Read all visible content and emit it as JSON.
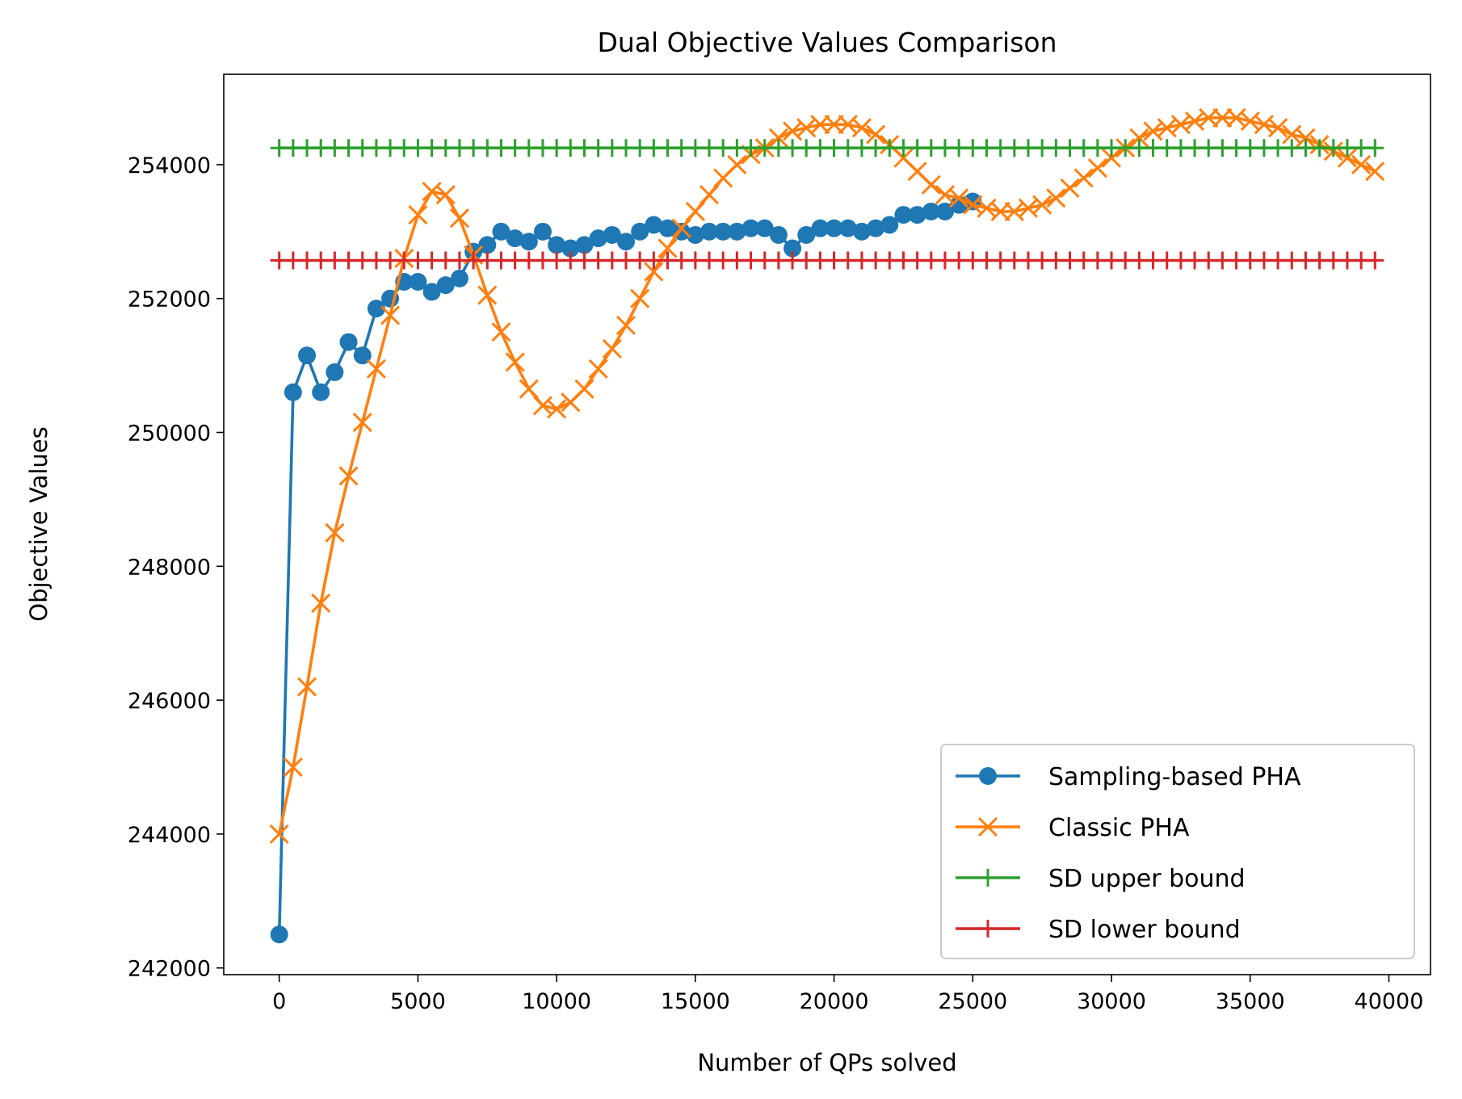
{
  "chart_data": {
    "type": "line",
    "title": "Dual Objective Values Comparison",
    "xlabel": "Number of QPs solved",
    "ylabel": "Objective Values",
    "xlim": [
      -2000,
      41500
    ],
    "ylim": [
      241900,
      255350
    ],
    "xticks": [
      0,
      5000,
      10000,
      15000,
      20000,
      25000,
      30000,
      35000,
      40000
    ],
    "xtick_labels": [
      "0",
      "5000",
      "10000",
      "15000",
      "20000",
      "25000",
      "30000",
      "35000",
      "40000"
    ],
    "yticks": [
      242000,
      244000,
      246000,
      248000,
      250000,
      252000,
      254000
    ],
    "ytick_labels": [
      "242000",
      "244000",
      "246000",
      "248000",
      "250000",
      "252000",
      "254000"
    ],
    "grid": false,
    "legend_position": "lower-right",
    "series": [
      {
        "name": "Sampling-based PHA",
        "color": "#1f77b4",
        "marker": "circle",
        "x": [
          0,
          500,
          1000,
          1500,
          2000,
          2500,
          3000,
          3500,
          4000,
          4500,
          5000,
          5500,
          6000,
          6500,
          7000,
          7500,
          8000,
          8500,
          9000,
          9500,
          10000,
          10500,
          11000,
          11500,
          12000,
          12500,
          13000,
          13500,
          14000,
          14500,
          15000,
          15500,
          16000,
          16500,
          17000,
          17500,
          18000,
          18500,
          19000,
          19500,
          20000,
          20500,
          21000,
          21500,
          22000,
          22500,
          23000,
          23500,
          24000,
          24500,
          25000
        ],
        "y": [
          242500,
          250600,
          251150,
          250600,
          250900,
          251350,
          251150,
          251850,
          252000,
          252250,
          252250,
          252100,
          252200,
          252300,
          252700,
          252800,
          253000,
          252900,
          252850,
          253000,
          252800,
          252750,
          252800,
          252900,
          252950,
          252850,
          253000,
          253100,
          253050,
          253000,
          252950,
          253000,
          253000,
          253000,
          253050,
          253050,
          252950,
          252750,
          252950,
          253050,
          253050,
          253050,
          253000,
          253050,
          253100,
          253250,
          253250,
          253300,
          253300,
          253400,
          253450
        ]
      },
      {
        "name": "Classic PHA",
        "color": "#ff7f0e",
        "marker": "x",
        "x": [
          0,
          500,
          1000,
          1500,
          2000,
          2500,
          3000,
          3500,
          4000,
          4500,
          5000,
          5500,
          6000,
          6500,
          7000,
          7500,
          8000,
          8500,
          9000,
          9500,
          10000,
          10500,
          11000,
          11500,
          12000,
          12500,
          13000,
          13500,
          14000,
          14500,
          15000,
          15500,
          16000,
          16500,
          17000,
          17500,
          18000,
          18500,
          19000,
          19500,
          20000,
          20500,
          21000,
          21500,
          22000,
          22500,
          23000,
          23500,
          24000,
          24500,
          25000,
          25500,
          26000,
          26500,
          27000,
          27500,
          28000,
          28500,
          29000,
          29500,
          30000,
          30500,
          31000,
          31500,
          32000,
          32500,
          33000,
          33500,
          34000,
          34500,
          35000,
          35500,
          36000,
          36500,
          37000,
          37500,
          38000,
          38500,
          39000,
          39500
        ],
        "y": [
          244000,
          245000,
          246200,
          247450,
          248500,
          249350,
          250150,
          250950,
          251750,
          252600,
          253250,
          253600,
          253550,
          253200,
          252650,
          252050,
          251500,
          251050,
          250650,
          250400,
          250350,
          250450,
          250650,
          250950,
          251250,
          251600,
          252000,
          252400,
          252750,
          253050,
          253300,
          253550,
          253800,
          254000,
          254150,
          254250,
          254400,
          254500,
          254550,
          254600,
          254600,
          254600,
          254550,
          254450,
          254300,
          254100,
          253900,
          253700,
          253550,
          253500,
          253400,
          253350,
          253300,
          253300,
          253350,
          253400,
          253500,
          253650,
          253800,
          253950,
          254100,
          254250,
          254400,
          254500,
          254550,
          254600,
          254650,
          254700,
          254700,
          254700,
          254650,
          254600,
          254550,
          254450,
          254400,
          254300,
          254200,
          254100,
          254000,
          253900
        ]
      },
      {
        "name": "SD upper bound",
        "color": "#2ca02c",
        "marker": "plus",
        "x_start": 0,
        "x_end": 39500,
        "x_step": 500,
        "y_constant": 254250
      },
      {
        "name": "SD lower bound",
        "color": "#d62728",
        "marker": "plus",
        "x_start": 0,
        "x_end": 39500,
        "x_step": 500,
        "y_constant": 252570
      }
    ]
  }
}
